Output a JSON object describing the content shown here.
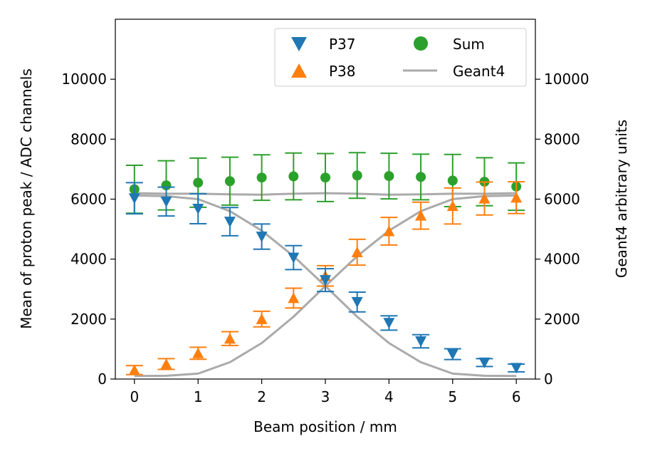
{
  "chart_data": {
    "type": "scatter",
    "xlabel": "Beam position / mm",
    "ylabel": "Mean of proton peak / ADC channels",
    "y2label": "Geant4 arbitrary units",
    "xlim": [
      -0.3,
      6.3
    ],
    "ylim": [
      0,
      12000
    ],
    "y2lim": [
      0,
      12000
    ],
    "x_ticks": [
      "0",
      "1",
      "2",
      "3",
      "4",
      "5",
      "6"
    ],
    "y_ticks": [
      "0",
      "2000",
      "4000",
      "6000",
      "8000",
      "10000"
    ],
    "legend_position": "top-right",
    "series": [
      {
        "name": "P37",
        "marker": "triangle-down",
        "color": "#1f77b4",
        "x": [
          0,
          0.5,
          1,
          1.5,
          2,
          2.5,
          3,
          3.5,
          4,
          4.5,
          5,
          5.5,
          6
        ],
        "y": [
          6030,
          5920,
          5680,
          5250,
          4750,
          4050,
          3300,
          2570,
          1870,
          1260,
          830,
          550,
          370
        ],
        "err": [
          520,
          480,
          500,
          470,
          420,
          400,
          380,
          330,
          240,
          220,
          180,
          130,
          130
        ]
      },
      {
        "name": "P38",
        "marker": "triangle-up",
        "color": "#ff7f0e",
        "x": [
          0,
          0.5,
          1,
          1.5,
          2,
          2.5,
          3,
          3.5,
          4,
          4.5,
          5,
          5.5,
          6
        ],
        "y": [
          300,
          500,
          860,
          1350,
          2000,
          2700,
          3440,
          4230,
          4930,
          5450,
          5770,
          6020,
          6050
        ],
        "err": [
          150,
          180,
          200,
          230,
          260,
          330,
          340,
          430,
          460,
          450,
          600,
          550,
          530
        ]
      },
      {
        "name": "Sum",
        "marker": "circle",
        "color": "#2ca02c",
        "x": [
          0,
          0.5,
          1,
          1.5,
          2,
          2.5,
          3,
          3.5,
          4,
          4.5,
          5,
          5.5,
          6
        ],
        "y": [
          6330,
          6460,
          6550,
          6600,
          6720,
          6760,
          6720,
          6790,
          6770,
          6740,
          6620,
          6580,
          6420
        ],
        "err": [
          800,
          820,
          820,
          800,
          760,
          780,
          800,
          760,
          760,
          760,
          870,
          800,
          790
        ]
      },
      {
        "name": "Geant4",
        "marker": "line",
        "color": "#aaaaaa",
        "x": [
          0,
          0.5,
          1,
          1.5,
          2,
          2.5,
          3,
          3.5,
          4,
          4.5,
          5,
          5.5,
          6
        ],
        "y_p37": [
          6120,
          6100,
          6000,
          5600,
          4950,
          4100,
          3100,
          2080,
          1200,
          560,
          180,
          110,
          100
        ],
        "y_p38": [
          100,
          110,
          180,
          560,
          1200,
          2080,
          3100,
          4100,
          4950,
          5600,
          6000,
          6100,
          6120
        ],
        "y_sum": [
          6200,
          6180,
          6180,
          6160,
          6150,
          6180,
          6200,
          6180,
          6150,
          6160,
          6180,
          6180,
          6200
        ]
      }
    ]
  }
}
